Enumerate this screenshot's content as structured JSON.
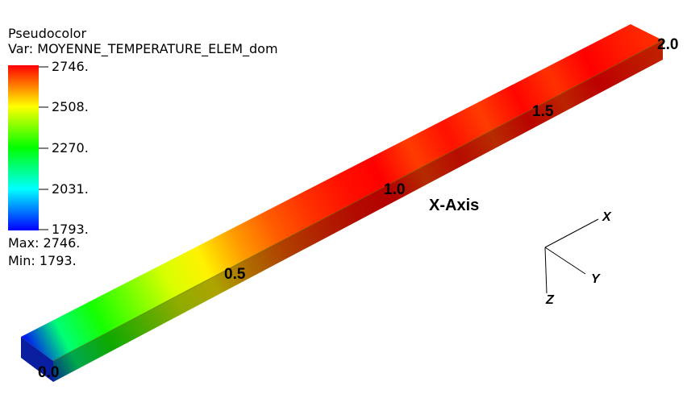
{
  "legend": {
    "plot_type": "Pseudocolor",
    "variable_label": "Var: MOYENNE_TEMPERATURE_ELEM_dom",
    "ticks": [
      "2746.",
      "2508.",
      "2270.",
      "2031.",
      "1793."
    ],
    "max_label": "Max:  2746.",
    "min_label": "Min:  1793.",
    "colormap": [
      "#ff0000",
      "#ffff00",
      "#00ff00",
      "#00ffff",
      "#0000ff"
    ]
  },
  "axis": {
    "title": "X-Axis",
    "tick_labels": [
      "0.0",
      "0.5",
      "1.0",
      "1.5",
      "2.0"
    ]
  },
  "triad": {
    "x": "X",
    "y": "Y",
    "z": "Z"
  },
  "field": {
    "min": 1793,
    "max": 2746,
    "samples": [
      1793,
      2160,
      2290,
      2380,
      2470,
      2520,
      2600,
      2660,
      2700,
      2730,
      2746,
      2690,
      2730,
      2690,
      2740,
      2700,
      2746,
      2720,
      2700
    ]
  }
}
